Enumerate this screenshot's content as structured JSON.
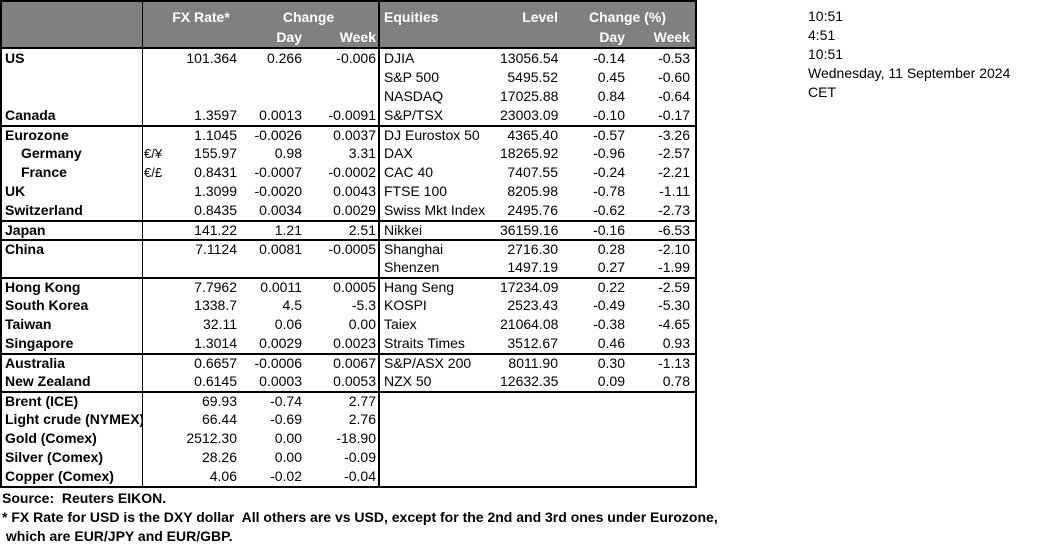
{
  "header": {
    "fx_rate": "FX Rate*",
    "change": "Change",
    "day": "Day",
    "week": "Week",
    "equities": "Equities",
    "level": "Level",
    "change_pct": "Change (%)"
  },
  "clock": {
    "lines": [
      "10:51",
      "4:51",
      "10:51",
      "Wednesday, 11 September 2024",
      "CET"
    ]
  },
  "rows": [
    {
      "l": {
        "name": "US",
        "pair": "",
        "fx": "101.364",
        "day": "0.266",
        "week": "-0.006"
      },
      "r": {
        "name": "DJIA",
        "level": "13056.54",
        "day": "-0.14",
        "week": "-0.53"
      }
    },
    {
      "l": {
        "name": "",
        "pair": "",
        "fx": "",
        "day": "",
        "week": ""
      },
      "r": {
        "name": "S&P 500",
        "level": "5495.52",
        "day": "0.45",
        "week": "-0.60"
      }
    },
    {
      "l": {
        "name": "",
        "pair": "",
        "fx": "",
        "day": "",
        "week": ""
      },
      "r": {
        "name": "NASDAQ",
        "level": "17025.88",
        "day": "0.84",
        "week": "-0.64"
      }
    },
    {
      "l": {
        "name": "Canada",
        "pair": "",
        "fx": "1.3597",
        "day": "0.0013",
        "week": "-0.0091"
      },
      "r": {
        "name": "S&P/TSX",
        "level": "23003.09",
        "day": "-0.10",
        "week": "-0.17"
      }
    },
    {
      "sep": true,
      "l": {
        "name": "Eurozone",
        "pair": "",
        "fx": "1.1045",
        "day": "-0.0026",
        "week": "0.0037"
      },
      "r": {
        "name": "DJ Eurostox 50",
        "level": "4365.40",
        "day": "-0.57",
        "week": "-3.26"
      }
    },
    {
      "l": {
        "name": "Germany",
        "indent": true,
        "pair": "€/¥",
        "fx": "155.97",
        "day": "0.98",
        "week": "3.31"
      },
      "r": {
        "name": "DAX",
        "level": "18265.92",
        "day": "-0.96",
        "week": "-2.57"
      }
    },
    {
      "l": {
        "name": "France",
        "indent": true,
        "pair": "€/£",
        "fx": "0.8431",
        "day": "-0.0007",
        "week": "-0.0002"
      },
      "r": {
        "name": "CAC 40",
        "level": "7407.55",
        "day": "-0.24",
        "week": "-2.21"
      }
    },
    {
      "l": {
        "name": "UK",
        "pair": "",
        "fx": "1.3099",
        "day": "-0.0020",
        "week": "0.0043"
      },
      "r": {
        "name": "FTSE 100",
        "level": "8205.98",
        "day": "-0.78",
        "week": "-1.11"
      }
    },
    {
      "l": {
        "name": "Switzerland",
        "pair": "",
        "fx": "0.8435",
        "day": "0.0034",
        "week": "0.0029"
      },
      "r": {
        "name": "Swiss Mkt Index",
        "level": "2495.76",
        "day": "-0.62",
        "week": "-2.73"
      }
    },
    {
      "sep": true,
      "l": {
        "name": "Japan",
        "pair": "",
        "fx": "141.22",
        "day": "1.21",
        "week": "2.51"
      },
      "r": {
        "name": "Nikkei",
        "level": "36159.16",
        "day": "-0.16",
        "week": "-6.53"
      }
    },
    {
      "sep": true,
      "l": {
        "name": "China",
        "pair": "",
        "fx": "7.1124",
        "day": "0.0081",
        "week": "-0.0005"
      },
      "r": {
        "name": "Shanghai",
        "level": "2716.30",
        "day": "0.28",
        "week": "-2.10"
      }
    },
    {
      "l": {
        "name": "",
        "pair": "",
        "fx": "",
        "day": "",
        "week": ""
      },
      "r": {
        "name": "Shenzen",
        "level": "1497.19",
        "day": "0.27",
        "week": "-1.99"
      }
    },
    {
      "sep": true,
      "l": {
        "name": "Hong Kong",
        "pair": "",
        "fx": "7.7962",
        "day": "0.0011",
        "week": "0.0005"
      },
      "r": {
        "name": "Hang Seng",
        "level": "17234.09",
        "day": "0.22",
        "week": "-2.59"
      }
    },
    {
      "l": {
        "name": "South Korea",
        "pair": "",
        "fx": "1338.7",
        "day": "4.5",
        "week": "-5.3"
      },
      "r": {
        "name": "KOSPI",
        "level": "2523.43",
        "day": "-0.49",
        "week": "-5.30"
      }
    },
    {
      "l": {
        "name": "Taiwan",
        "pair": "",
        "fx": "32.11",
        "day": "0.06",
        "week": "0.00"
      },
      "r": {
        "name": "Taiex",
        "level": "21064.08",
        "day": "-0.38",
        "week": "-4.65"
      }
    },
    {
      "l": {
        "name": "Singapore",
        "pair": "",
        "fx": "1.3014",
        "day": "0.0029",
        "week": "0.0023"
      },
      "r": {
        "name": "Straits Times",
        "level": "3512.67",
        "day": "0.46",
        "week": "0.93"
      }
    },
    {
      "sep": true,
      "l": {
        "name": "Australia",
        "pair": "",
        "fx": "0.6657",
        "day": "-0.0006",
        "week": "0.0067"
      },
      "r": {
        "name": "S&P/ASX  200",
        "level": "8011.90",
        "day": "0.30",
        "week": "-1.13"
      }
    },
    {
      "l": {
        "name": "New Zealand",
        "pair": "",
        "fx": "0.6145",
        "day": "0.0003",
        "week": "0.0053"
      },
      "r": {
        "name": "NZX 50",
        "level": "12632.35",
        "day": "0.09",
        "week": "0.78"
      }
    },
    {
      "sep": true,
      "l": {
        "name": "Brent (ICE)",
        "pair": "",
        "fx": "69.93",
        "day": "-0.74",
        "week": "2.77"
      },
      "r": {
        "name": "",
        "level": "",
        "day": "",
        "week": ""
      }
    },
    {
      "l": {
        "name": "Light crude (NYMEX)",
        "pair": "",
        "fx": "66.44",
        "day": "-0.69",
        "week": "2.76"
      },
      "r": {
        "name": "",
        "level": "",
        "day": "",
        "week": ""
      }
    },
    {
      "l": {
        "name": "Gold (Comex)",
        "pair": "",
        "fx": "2512.30",
        "day": "0.00",
        "week": "-18.90"
      },
      "r": {
        "name": "",
        "level": "",
        "day": "",
        "week": ""
      }
    },
    {
      "l": {
        "name": "Silver (Comex)",
        "pair": "",
        "fx": "28.26",
        "day": "0.00",
        "week": "-0.09"
      },
      "r": {
        "name": "",
        "level": "",
        "day": "",
        "week": ""
      }
    },
    {
      "l": {
        "name": "Copper (Comex)",
        "pair": "",
        "fx": "4.06",
        "day": "-0.02",
        "week": "-0.04"
      },
      "r": {
        "name": "",
        "level": "",
        "day": "",
        "week": ""
      }
    }
  ],
  "footer": {
    "lines": [
      "Source:  Reuters EIKON.",
      "* FX Rate for USD is the DXY dollar  All others are vs USD, except for the 2nd and 3rd ones under Eurozone,",
      " which are EUR/JPY and EUR/GBP."
    ]
  },
  "colors": {
    "header_bg": "#808080",
    "header_text": "#ffffff",
    "border": "#000000",
    "text": "#000000",
    "background": "#ffffff"
  }
}
